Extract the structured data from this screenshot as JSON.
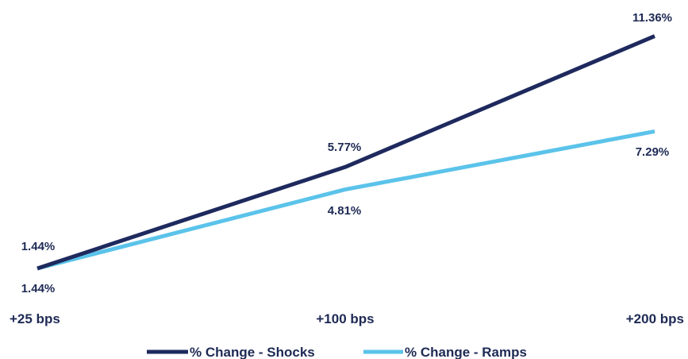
{
  "chart_data": {
    "type": "line",
    "categories": [
      "+25 bps",
      "+100 bps",
      "+200 bps"
    ],
    "series": [
      {
        "name": "% Change - Shocks",
        "values": [
          1.44,
          5.77,
          11.36
        ],
        "labels": [
          "1.44%",
          "5.77%",
          "11.36%"
        ],
        "color": "#1e2a5e"
      },
      {
        "name": "% Change - Ramps",
        "values": [
          1.44,
          4.81,
          7.29
        ],
        "labels": [
          "1.44%",
          "4.81%",
          "7.29%"
        ],
        "color": "#5bc3ea"
      }
    ],
    "title": "",
    "xlabel": "",
    "ylabel": "",
    "ylim": [
      0,
      12
    ],
    "grid": false,
    "legend_position": "bottom"
  }
}
